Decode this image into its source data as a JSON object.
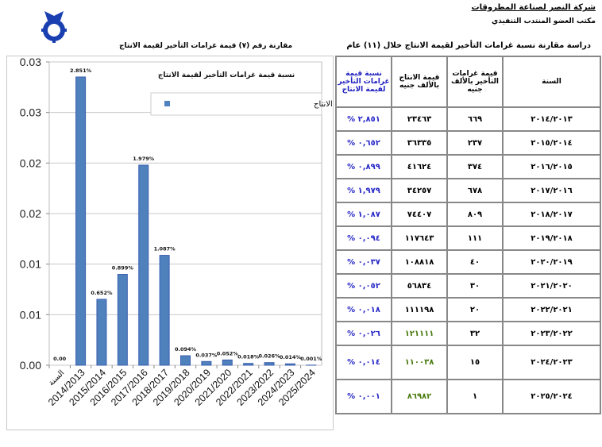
{
  "header": {
    "company": "شركة النصر لصناعة المطروقات",
    "office": "مكتب العضو المنتدب التنفيذي",
    "study_title": "دراسة مقارنة نسبة غرامات التأخير  لقيمة الانتاج خلال (١١) عام",
    "logo_text": "المطروقات"
  },
  "chart_heading": "مقارنة  رقم (٧) قيمة غرامات التأخير لقيمة الانتاج",
  "chart_data": {
    "type": "bar",
    "title": "نسبة قيمة غرامات التأخير لقيمة الانتاج",
    "legend": "نسبة قيمة غرامات التأخير لقيمة الانتاج",
    "legend_position": "top-right",
    "categories": [
      "السنة",
      "2014/2013",
      "2015/2014",
      "2016/2015",
      "2017/2016",
      "2018/2017",
      "2019/2018",
      "2020/2019",
      "2021/2020",
      "2022/2021",
      "2023/2022",
      "2024/2023",
      "2025/2024"
    ],
    "values": [
      0,
      0.02851,
      0.00652,
      0.00899,
      0.01979,
      0.01087,
      0.00094,
      0.00037,
      0.00052,
      0.00018,
      0.00026,
      0.00014,
      1e-05
    ],
    "data_labels": [
      "0.00",
      "2.851%",
      "0.652%",
      "0.899%",
      "1.979%",
      "1.087%",
      "0.094%",
      "0.037%",
      "0.052%",
      "0.018%",
      "0.026%",
      "0.014%",
      "0.001%"
    ],
    "ylim": [
      0,
      0.03
    ],
    "yticks": [
      0,
      0.005,
      0.01,
      0.015,
      0.02,
      0.025,
      0.03
    ],
    "ytick_labels": [
      "0.00",
      "0.01",
      "0.01",
      "0.02",
      "0.02",
      "0.03",
      "0.03"
    ],
    "grid": true,
    "bar_color": "#4f81bd"
  },
  "table": {
    "headers": {
      "year": "السنة",
      "fines": "قيمة غرامات التأخير بالألف جنيه",
      "production": "قيمة الانتاج بالألف جنيه",
      "pct": "نسبة قيمة غرامات التأخير لقيمة الانتاج"
    },
    "rows": [
      {
        "year": "٢٠١٤/٢٠١٣",
        "fines": "٦٦٩",
        "production": "٢٣٤٦٣",
        "pct": "% ٢,٨٥١"
      },
      {
        "year": "٢٠١٥/٢٠١٤",
        "fines": "٢٣٧",
        "production": "٣٦٣٣٥",
        "pct": "% ٠,٦٥٢"
      },
      {
        "year": "٢٠١٦/٢٠١٥",
        "fines": "٣٧٤",
        "production": "٤١٦٢٤",
        "pct": "% ٠,٨٩٩"
      },
      {
        "year": "٢٠١٧/٢٠١٦",
        "fines": "٦٧٨",
        "production": "٣٤٢٥٧",
        "pct": "% ١,٩٧٩"
      },
      {
        "year": "٢٠١٨/٢٠١٧",
        "fines": "٨٠٩",
        "production": "٧٤٤٠٧",
        "pct": "% ١,٠٨٧"
      },
      {
        "year": "٢٠١٩/٢٠١٨",
        "fines": "١١١",
        "production": "١١٧٦٤٣",
        "pct": "% ٠,٠٩٤"
      },
      {
        "year": "٢٠٢٠/٢٠١٩",
        "fines": "٤٠",
        "production": "١٠٨٨١٨",
        "pct": "% ٠,٠٣٧"
      },
      {
        "year": "٢٠٢١/٢٠٢٠",
        "fines": "٣٠",
        "production": "٥٦٨٣٤",
        "pct": "% ٠,٠٥٢"
      },
      {
        "year": "٢٠٢٢/٢٠٢١",
        "fines": "٢٠",
        "production": "١١١١٩٨",
        "pct": "% ٠,٠١٨"
      },
      {
        "year": "٢٠٢٣/٢٠٢٢",
        "fines": "٣٢",
        "production": "١٢١١١١",
        "pct": "% ٠,٠٢٦"
      },
      {
        "year": "٢٠٢٤/٢٠٢٣",
        "fines": "١٥",
        "production": "١١٠٠٣٨",
        "pct": "% ٠,٠١٤"
      },
      {
        "year": "٢٠٢٥/٢٠٢٤",
        "fines": "١",
        "production": "٨٦٩٨٢",
        "pct": "% ٠,٠٠١"
      }
    ]
  }
}
